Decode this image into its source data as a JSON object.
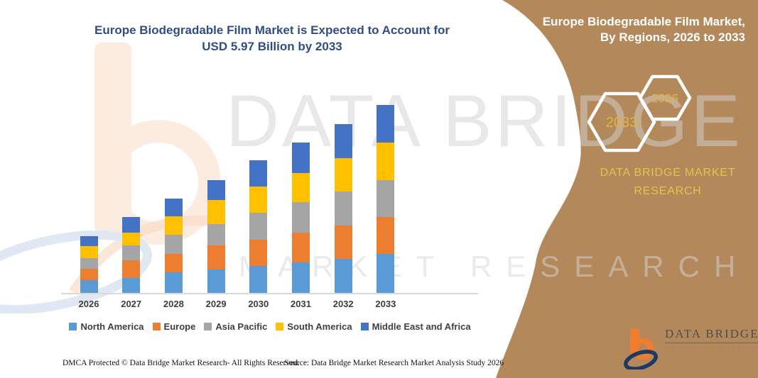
{
  "title": {
    "line1": "Europe Biodegradable Film Market is Expected to Account for",
    "line2": "USD 5.97 Billion by 2033"
  },
  "side_panel": {
    "heading_line1": "Europe Biodegradable Film Market,",
    "heading_line2": "By Regions, 2026 to 2033",
    "hexagon_left_year": "2033",
    "hexagon_right_year": "2026",
    "brand_line1": "DATA BRIDGE MARKET",
    "brand_line2": "RESEARCH",
    "panel_color": "#B3895C",
    "accent_text_color": "#E9C04C"
  },
  "watermark": {
    "line1": "DATA BRIDGE",
    "line2": "MARKET RESEARCH"
  },
  "chart_data": {
    "type": "bar",
    "stacked": true,
    "title": "Europe Biodegradable Film Market is Expected to Account for USD 5.97 Billion by 2033",
    "unit": "USD Billion",
    "categories": [
      "2026",
      "2027",
      "2028",
      "2029",
      "2030",
      "2031",
      "2032",
      "2033"
    ],
    "series": [
      {
        "name": "North America",
        "color": "#5B9BD5",
        "values": [
          0.41,
          0.47,
          0.65,
          0.75,
          0.86,
          0.97,
          1.08,
          1.24
        ]
      },
      {
        "name": "Europe",
        "color": "#ED7D31",
        "values": [
          0.36,
          0.56,
          0.6,
          0.75,
          0.83,
          0.95,
          1.07,
          1.18
        ]
      },
      {
        "name": "Asia Pacific",
        "color": "#A5A5A5",
        "values": [
          0.33,
          0.47,
          0.59,
          0.68,
          0.86,
          0.97,
          1.07,
          1.16
        ]
      },
      {
        "name": "South America",
        "color": "#FFC000",
        "values": [
          0.38,
          0.41,
          0.6,
          0.77,
          0.83,
          0.92,
          1.07,
          1.2
        ]
      },
      {
        "name": "Middle East and Africa",
        "color": "#4472C4",
        "values": [
          0.32,
          0.5,
          0.56,
          0.63,
          0.83,
          0.97,
          1.08,
          1.19
        ]
      }
    ],
    "totals": [
      1.8,
      2.41,
      3.0,
      3.58,
      4.21,
      4.78,
      5.37,
      5.97
    ],
    "ylim": [
      0,
      6.5
    ],
    "gridlines": false,
    "legend_position": "bottom",
    "xlabel": "",
    "ylabel": ""
  },
  "footer": {
    "dmca": "DMCA Protected © Data Bridge Market Research-  All Rights Reserved.",
    "source": "Source: Data Bridge Market Research  Market Analysis Study 2026"
  },
  "logo": {
    "name_line": "DATA BRIDGE",
    "sub_line": "MARKET RESEARCH"
  }
}
